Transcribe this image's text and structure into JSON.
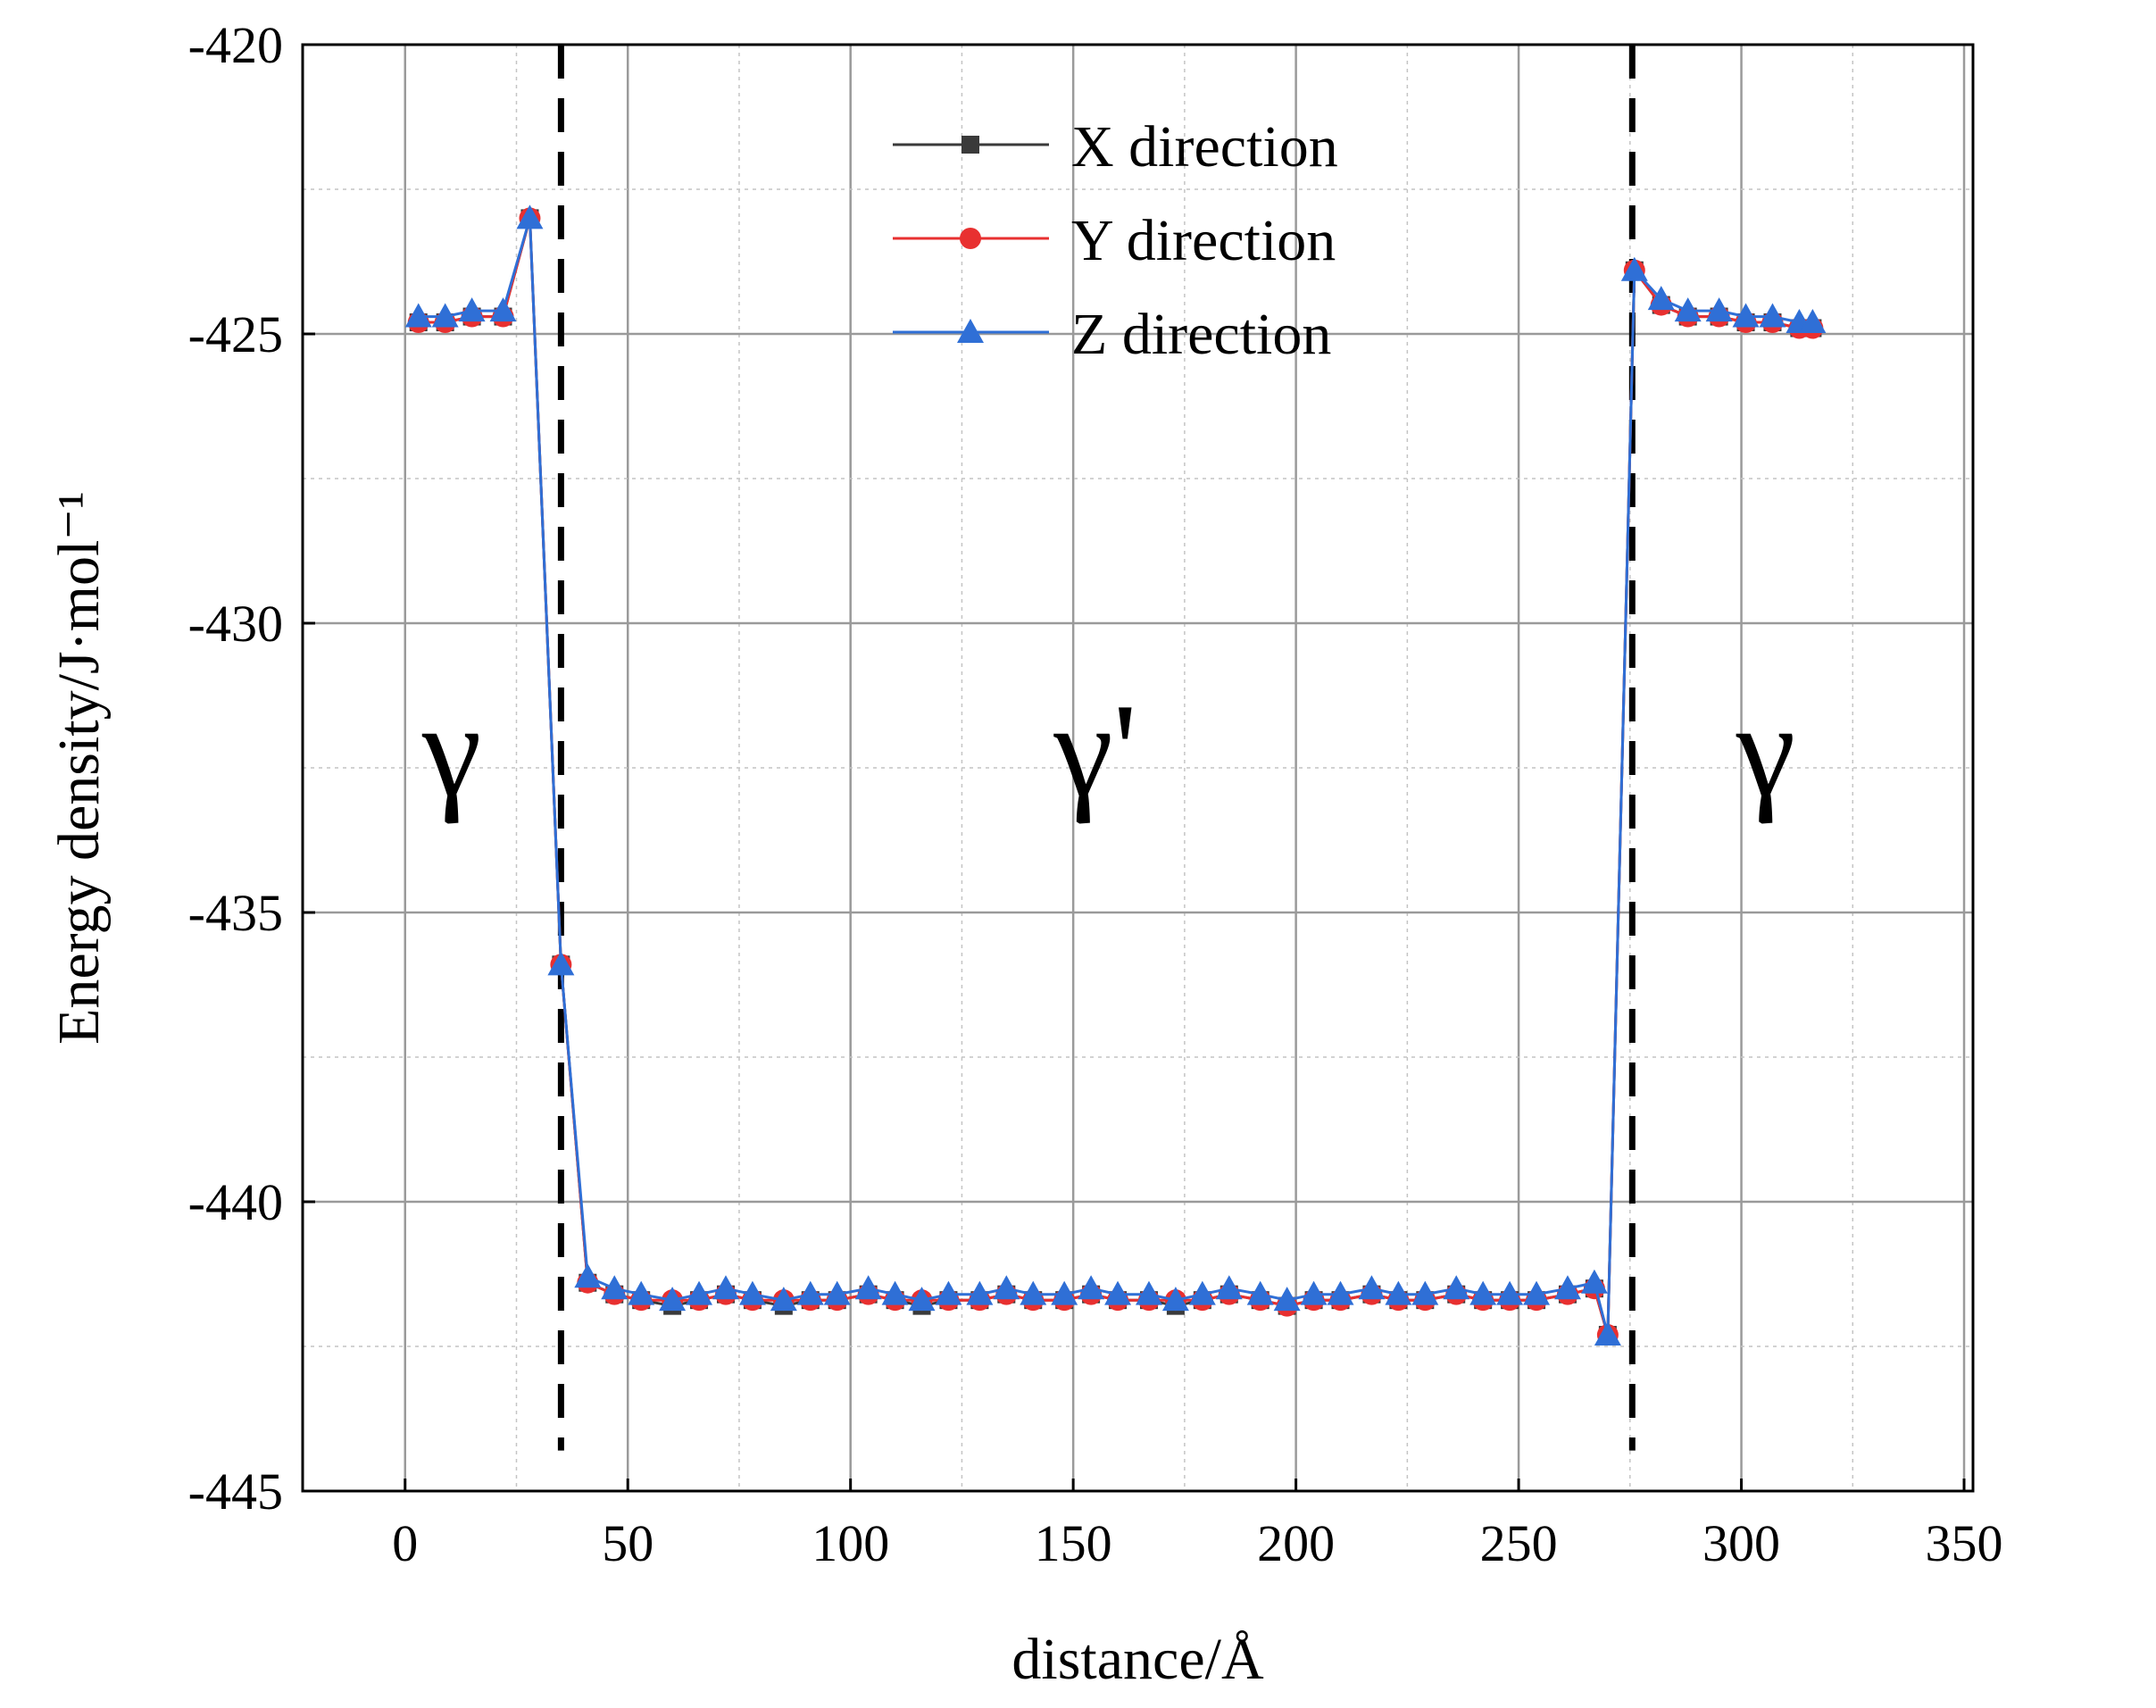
{
  "chart_data": {
    "type": "line",
    "xlabel": "distance/Å",
    "ylabel": "Energy density/J·mol⁻¹",
    "xlim": [
      -23,
      352
    ],
    "ylim": [
      -445,
      -420
    ],
    "xticks": [
      0,
      50,
      100,
      150,
      200,
      250,
      300,
      350
    ],
    "yticks": [
      -420,
      -425,
      -430,
      -435,
      -440,
      -445
    ],
    "xtick_labels": [
      "0",
      "50",
      "100",
      "150",
      "200",
      "250",
      "300",
      "350"
    ],
    "ytick_labels": [
      "-420",
      "-425",
      "-430",
      "-435",
      "-440",
      "-445"
    ],
    "grid": true,
    "legend_position": "top-center",
    "boundaries": [
      35,
      275.5
    ],
    "region_labels": [
      {
        "text": "γ",
        "x": 10.5,
        "y": -432.2
      },
      {
        "text": "γ'",
        "x": 155,
        "y": -432.2
      },
      {
        "text": "γ",
        "x": 305.5,
        "y": -432.2
      }
    ],
    "x": [
      3,
      9,
      15,
      22,
      28,
      35,
      41,
      47,
      53,
      60,
      66,
      72,
      78,
      85,
      91,
      97,
      104,
      110,
      116,
      122,
      129,
      135,
      141,
      148,
      154,
      160,
      167,
      173,
      179,
      185,
      192,
      198,
      204,
      210,
      217,
      223,
      229,
      236,
      242,
      248,
      254,
      261,
      267,
      270,
      276,
      282,
      288,
      295,
      301,
      307,
      313,
      316
    ],
    "series": [
      {
        "name": "X direction",
        "color": "#3a3a3a",
        "marker": "square",
        "values": [
          -424.8,
          -424.8,
          -424.7,
          -424.7,
          -423.0,
          -435.9,
          -441.4,
          -441.6,
          -441.7,
          -441.8,
          -441.7,
          -441.6,
          -441.7,
          -441.8,
          -441.7,
          -441.7,
          -441.6,
          -441.7,
          -441.8,
          -441.7,
          -441.7,
          -441.6,
          -441.7,
          -441.7,
          -441.6,
          -441.7,
          -441.7,
          -441.8,
          -441.7,
          -441.6,
          -441.7,
          -441.8,
          -441.7,
          -441.7,
          -441.6,
          -441.7,
          -441.7,
          -441.6,
          -441.7,
          -441.7,
          -441.7,
          -441.6,
          -441.5,
          -442.3,
          -423.9,
          -424.5,
          -424.7,
          -424.7,
          -424.8,
          -424.8,
          -424.9,
          -424.9
        ]
      },
      {
        "name": "Y direction",
        "color": "#e83030",
        "marker": "circle",
        "values": [
          -424.8,
          -424.8,
          -424.7,
          -424.7,
          -423.0,
          -435.9,
          -441.4,
          -441.6,
          -441.7,
          -441.7,
          -441.7,
          -441.6,
          -441.7,
          -441.7,
          -441.7,
          -441.7,
          -441.6,
          -441.7,
          -441.7,
          -441.7,
          -441.7,
          -441.6,
          -441.7,
          -441.7,
          -441.6,
          -441.7,
          -441.7,
          -441.7,
          -441.7,
          -441.6,
          -441.7,
          -441.8,
          -441.7,
          -441.7,
          -441.6,
          -441.7,
          -441.7,
          -441.6,
          -441.7,
          -441.7,
          -441.7,
          -441.6,
          -441.5,
          -442.3,
          -423.9,
          -424.5,
          -424.7,
          -424.7,
          -424.8,
          -424.8,
          -424.9,
          -424.9
        ]
      },
      {
        "name": "Z direction",
        "color": "#2f6fd6",
        "marker": "triangle",
        "values": [
          -424.7,
          -424.7,
          -424.6,
          -424.6,
          -423.0,
          -435.9,
          -441.3,
          -441.5,
          -441.6,
          -441.7,
          -441.6,
          -441.5,
          -441.6,
          -441.7,
          -441.6,
          -441.6,
          -441.5,
          -441.6,
          -441.7,
          -441.6,
          -441.6,
          -441.5,
          -441.6,
          -441.6,
          -441.5,
          -441.6,
          -441.6,
          -441.7,
          -441.6,
          -441.5,
          -441.6,
          -441.7,
          -441.6,
          -441.6,
          -441.5,
          -441.6,
          -441.6,
          -441.5,
          -441.6,
          -441.6,
          -441.6,
          -441.5,
          -441.4,
          -442.3,
          -423.9,
          -424.4,
          -424.6,
          -424.6,
          -424.7,
          -424.7,
          -424.8,
          -424.8
        ]
      }
    ]
  }
}
